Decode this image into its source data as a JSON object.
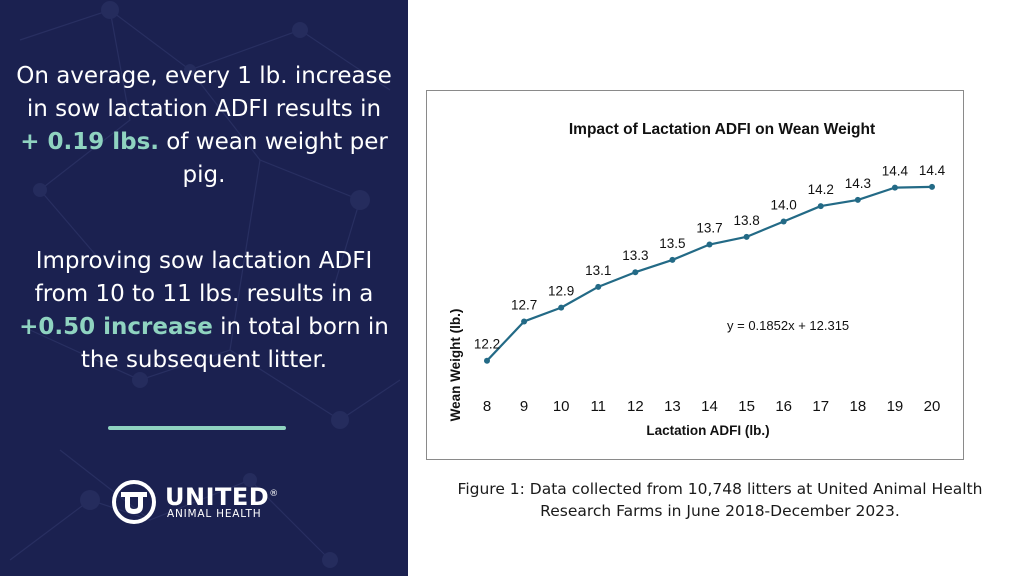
{
  "left_panel": {
    "stat1": {
      "before": "On average, every 1 lb. increase in sow lactation ADFI results in ",
      "highlight": "+ 0.19 lbs.",
      "after": " of wean weight per pig."
    },
    "stat2": {
      "before": "Improving sow lactation ADFI from 10 to 11 lbs. results in a ",
      "highlight": "+0.50 increase",
      "after": " in total born in the subsequent litter."
    },
    "logo": {
      "name": "UNITED",
      "registered": "®",
      "subtitle": "ANIMAL HEALTH"
    },
    "colors": {
      "background": "#1b2150",
      "accent": "#8fd3c0"
    }
  },
  "chart_data": {
    "type": "line",
    "title": "Impact of Lactation ADFI on Wean Weight",
    "xlabel": "Lactation ADFI (lb.)",
    "ylabel": "Wean Weight (lb.)",
    "x": [
      8,
      9,
      10,
      11,
      12,
      13,
      14,
      15,
      16,
      17,
      18,
      19,
      20
    ],
    "values": [
      12.2,
      12.7,
      12.9,
      13.1,
      13.3,
      13.5,
      13.7,
      13.8,
      14.0,
      14.2,
      14.3,
      14.4,
      14.4
    ],
    "point_values": [
      12.16,
      12.67,
      12.85,
      13.12,
      13.31,
      13.47,
      13.67,
      13.77,
      13.97,
      14.17,
      14.25,
      14.41,
      14.42
    ],
    "data_labels": [
      "12.2",
      "12.7",
      "12.9",
      "13.1",
      "13.3",
      "13.5",
      "13.7",
      "13.8",
      "14.0",
      "14.2",
      "14.3",
      "14.4",
      "14.4"
    ],
    "ylim": [
      12.0,
      14.6
    ],
    "grid": false,
    "legend": "none",
    "annotation": "y = 0.1852x + 12.315",
    "line_color": "#236a86"
  },
  "caption": "Figure 1: Data collected from 10,748 litters at United Animal Health Research Farms in June 2018-December 2023."
}
